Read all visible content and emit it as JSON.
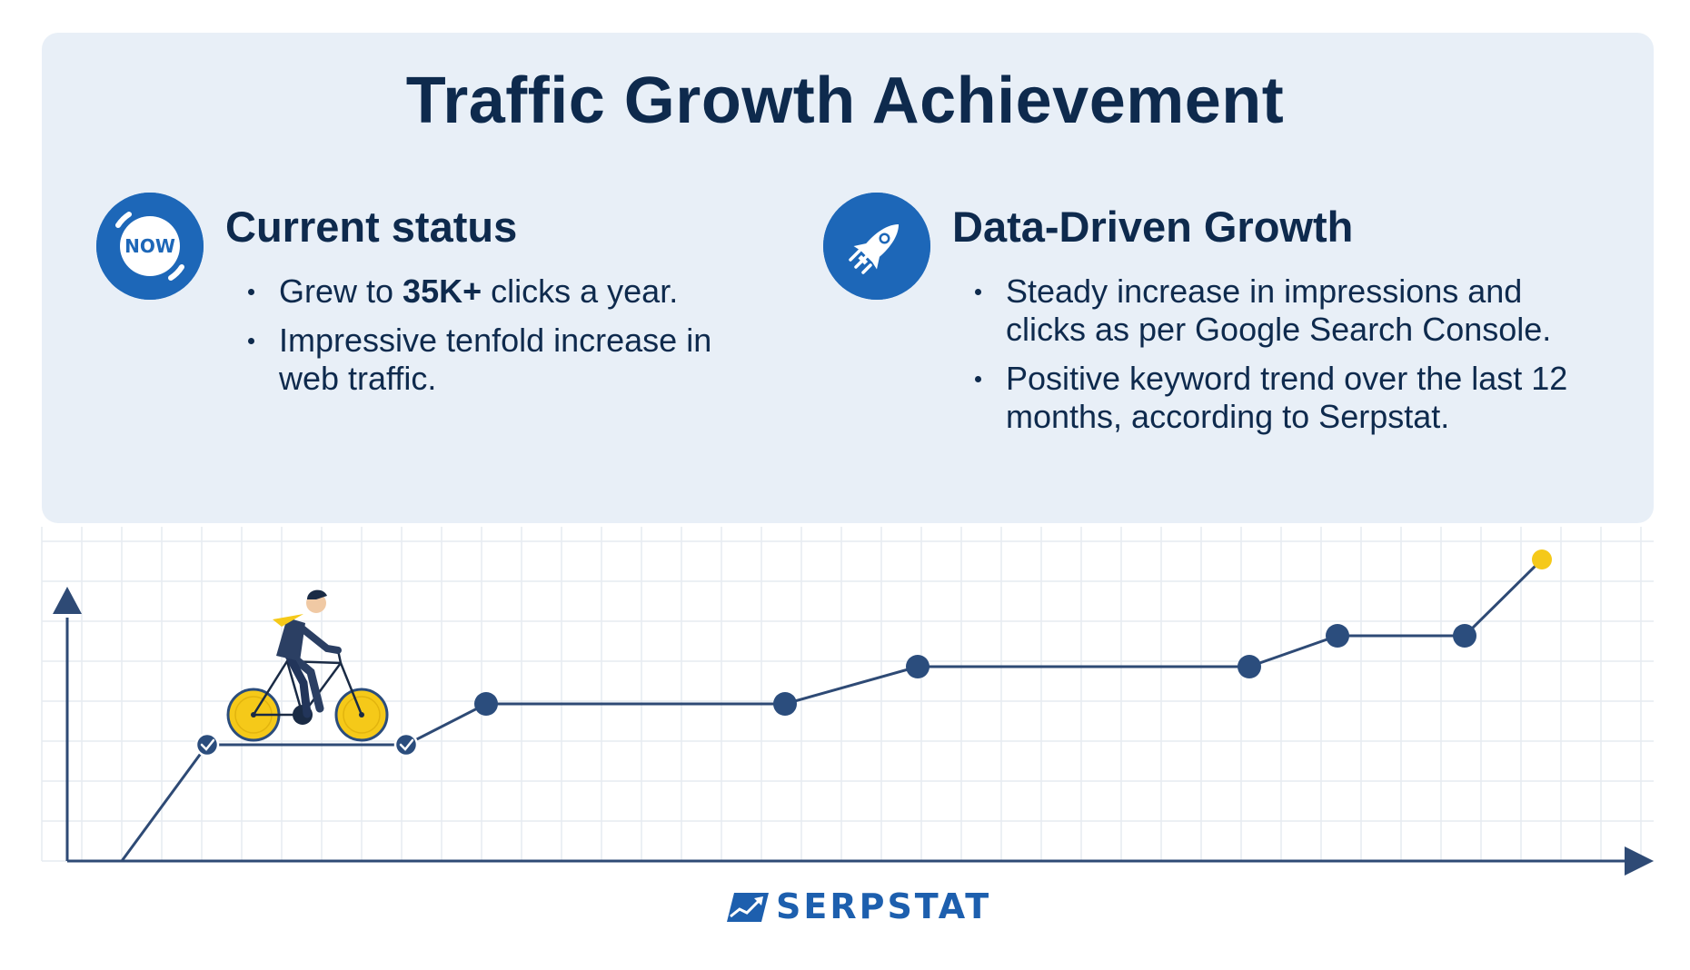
{
  "title": "Traffic Growth Achievement",
  "left_section": {
    "heading": "Current status",
    "badge_text": "NOW",
    "bullets": [
      {
        "before": "Grew to ",
        "bold": "35K+",
        "after": " clicks a year."
      },
      {
        "before": "Impressive tenfold increase in web traffic.",
        "bold": "",
        "after": ""
      }
    ]
  },
  "right_section": {
    "heading": "Data-Driven Growth",
    "icon": "rocket-icon",
    "bullets": [
      {
        "text": "Steady increase in impressions and clicks as per Google Search Console."
      },
      {
        "text": "Positive keyword trend over the last 12 months, according to Serpstat."
      }
    ]
  },
  "brand": {
    "name": "SERPSTAT",
    "color": "#1d5fae"
  },
  "colors": {
    "navy": "#0e2a4d",
    "accent_blue": "#1d67b8",
    "line": "#2e4a75",
    "node": "#2b4d7d",
    "highlight": "#f5c919",
    "panel_bg": "#e8eff7"
  }
}
